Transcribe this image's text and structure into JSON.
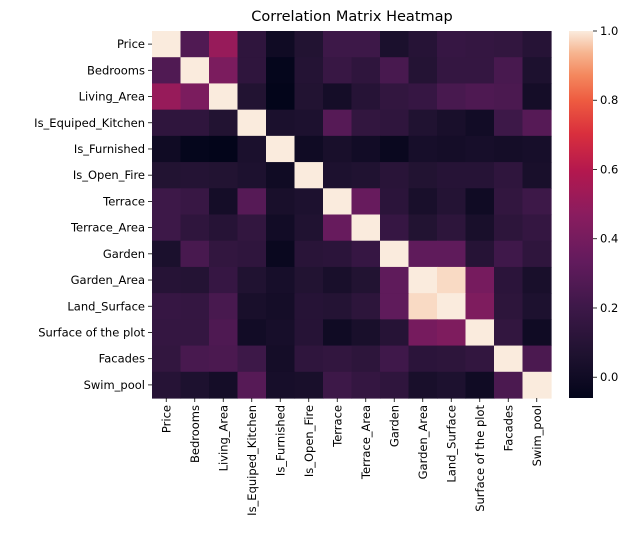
{
  "chart_data": {
    "type": "heatmap",
    "title": "Correlation Matrix Heatmap",
    "labels": [
      "Price",
      "Bedrooms",
      "Living_Area",
      "Is_Equiped_Kitchen",
      "Is_Furnished",
      "Is_Open_Fire",
      "Terrace",
      "Terrace_Area",
      "Garden",
      "Garden_Area",
      "Land_Surface",
      "Surface of the plot",
      "Facades",
      "Swim_pool"
    ],
    "values": [
      [
        1.0,
        0.27,
        0.51,
        0.14,
        0.0,
        0.08,
        0.2,
        0.2,
        0.05,
        0.1,
        0.17,
        0.16,
        0.15,
        0.1
      ],
      [
        0.27,
        1.0,
        0.42,
        0.14,
        -0.05,
        0.09,
        0.18,
        0.14,
        0.24,
        0.09,
        0.16,
        0.16,
        0.24,
        0.06
      ],
      [
        0.51,
        0.42,
        1.0,
        0.08,
        -0.06,
        0.08,
        0.02,
        0.1,
        0.15,
        0.17,
        0.24,
        0.26,
        0.25,
        0.02
      ],
      [
        0.14,
        0.14,
        0.08,
        1.0,
        0.05,
        0.06,
        0.29,
        0.15,
        0.14,
        0.07,
        0.04,
        0.01,
        0.2,
        0.29
      ],
      [
        0.0,
        -0.05,
        -0.06,
        0.05,
        1.0,
        0.0,
        0.04,
        0.01,
        -0.03,
        0.03,
        0.02,
        0.03,
        0.02,
        0.03
      ],
      [
        0.08,
        0.09,
        0.08,
        0.06,
        0.0,
        1.0,
        0.06,
        0.07,
        0.11,
        0.08,
        0.1,
        0.1,
        0.14,
        0.04
      ],
      [
        0.2,
        0.18,
        0.02,
        0.29,
        0.04,
        0.06,
        1.0,
        0.35,
        0.12,
        0.04,
        0.09,
        0.0,
        0.15,
        0.2
      ],
      [
        0.2,
        0.14,
        0.1,
        0.15,
        0.01,
        0.07,
        0.35,
        1.0,
        0.17,
        0.08,
        0.13,
        0.04,
        0.13,
        0.16
      ],
      [
        0.05,
        0.24,
        0.15,
        0.14,
        -0.03,
        0.11,
        0.12,
        0.17,
        1.0,
        0.32,
        0.32,
        0.1,
        0.21,
        0.14
      ],
      [
        0.1,
        0.09,
        0.17,
        0.07,
        0.03,
        0.08,
        0.04,
        0.08,
        0.32,
        1.0,
        0.98,
        0.4,
        0.12,
        0.04
      ],
      [
        0.17,
        0.16,
        0.24,
        0.04,
        0.02,
        0.1,
        0.09,
        0.13,
        0.32,
        0.98,
        1.0,
        0.43,
        0.13,
        0.06
      ],
      [
        0.16,
        0.16,
        0.26,
        0.01,
        0.03,
        0.1,
        0.0,
        0.04,
        0.1,
        0.4,
        0.43,
        1.0,
        0.15,
        0.0
      ],
      [
        0.15,
        0.24,
        0.25,
        0.2,
        0.02,
        0.14,
        0.15,
        0.13,
        0.21,
        0.12,
        0.13,
        0.15,
        1.0,
        0.25
      ],
      [
        0.1,
        0.06,
        0.02,
        0.29,
        0.03,
        0.04,
        0.2,
        0.16,
        0.14,
        0.04,
        0.06,
        0.0,
        0.25,
        1.0
      ]
    ],
    "vmin": -0.06,
    "vmax": 1.0,
    "colorbar_ticks": [
      "0.0",
      "0.2",
      "0.4",
      "0.6",
      "0.8",
      "1.0"
    ],
    "colorbar_tick_values": [
      0.0,
      0.2,
      0.4,
      0.6,
      0.8,
      1.0
    ],
    "colormap": "rocket"
  }
}
